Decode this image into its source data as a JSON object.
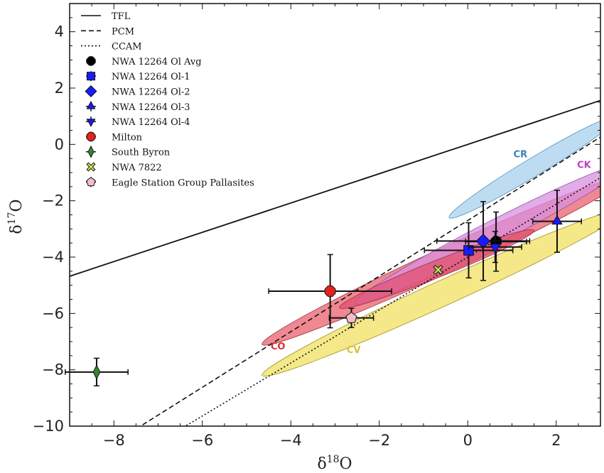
{
  "chart_data": {
    "type": "scatter",
    "xlabel": "δ18O",
    "ylabel": "δ17O",
    "xlim": [
      -9,
      3
    ],
    "ylim": [
      -10,
      5
    ],
    "xticks": [
      -8,
      -6,
      -4,
      -2,
      0,
      2
    ],
    "yticks": [
      -10,
      -8,
      -6,
      -4,
      -2,
      0,
      2,
      4
    ],
    "legend_position": "top-left",
    "lines": [
      {
        "name": "TFL",
        "style": "solid",
        "slope": 0.52,
        "intercept": 0,
        "x_range": [
          -9,
          3
        ]
      },
      {
        "name": "PCM",
        "style": "dashed",
        "slope": 0.987,
        "intercept": -2.7,
        "x_range": [
          -7.5,
          3
        ]
      },
      {
        "name": "CCAM",
        "style": "dotted",
        "slope": 0.94,
        "intercept": -4.0,
        "x_range": [
          -6.5,
          3
        ]
      }
    ],
    "series": [
      {
        "name": "NWA 12264 Ol Avg",
        "marker": "octagon",
        "color": "#000000",
        "x": 0.64,
        "y": -3.45,
        "xerr": 0.69,
        "yerr": 1.05
      },
      {
        "name": "NWA 12264 Ol-1",
        "marker": "square",
        "color": "#1a1aff",
        "x": 0.02,
        "y": -3.76,
        "xerr": 1.0,
        "yerr": 0.98
      },
      {
        "name": "NWA 12264 Ol-2",
        "marker": "diamond",
        "color": "#1a1aff",
        "x": 0.35,
        "y": -3.43,
        "xerr": 1.05,
        "yerr": 1.4
      },
      {
        "name": "NWA 12264 Ol-3",
        "marker": "triangle-up",
        "color": "#1a1aff",
        "x": 2.02,
        "y": -2.73,
        "xerr": 0.55,
        "yerr": 1.1
      },
      {
        "name": "NWA 12264 Ol-4",
        "marker": "triangle-down",
        "color": "#1a1aff",
        "x": 0.62,
        "y": -3.64,
        "xerr": 0.6,
        "yerr": 0.55
      },
      {
        "name": "Milton",
        "marker": "octagon",
        "color": "#e8201a",
        "x": -3.11,
        "y": -5.21,
        "xerr": 1.39,
        "yerr": 1.3
      },
      {
        "name": "South Byron",
        "marker": "thin-diamond",
        "color": "#2e8b2e",
        "x": -8.39,
        "y": -8.08,
        "xerr": 0.71,
        "yerr": 0.49
      },
      {
        "name": "NWA 7822",
        "marker": "x-filled",
        "color": "#c8e050",
        "x": -0.67,
        "y": -4.45,
        "xerr": 0,
        "yerr": 0
      },
      {
        "name": "Eagle Station Group Pallasites",
        "marker": "pentagon",
        "color": "#f4bcc8",
        "x": -2.63,
        "y": -6.16,
        "xerr": 0.5,
        "yerr": 0.34
      }
    ],
    "regions": [
      {
        "label": "CV",
        "from": [
          -4.65,
          -8.2
        ],
        "to": [
          3.6,
          -2.3
        ],
        "half_width": 0.45,
        "fill": "#f0e060",
        "stroke": "#a09020",
        "label_color": "#d8c030",
        "label_at": [
          -2.58,
          -7.4
        ]
      },
      {
        "label": "CO",
        "from": [
          -4.65,
          -7.1
        ],
        "to": [
          3.6,
          -1.15
        ],
        "half_width": 0.45,
        "fill": "#e8606c",
        "stroke": "#a03040",
        "label_color": "#d83030",
        "label_at": [
          -4.29,
          -7.28
        ]
      },
      {
        "label": "CK",
        "from": [
          -2.55,
          -5.65
        ],
        "to": [
          3.6,
          -0.7
        ],
        "half_width": 0.42,
        "fill": "#d890e0",
        "stroke": "#9050a0",
        "label_color": "#c040c8",
        "label_at": [
          2.63,
          -0.83
        ]
      },
      {
        "label": "",
        "from": [
          -2.9,
          -5.8
        ],
        "to": [
          1.5,
          -3.05
        ],
        "half_width": 0.3,
        "fill": "#e05070",
        "stroke": "#a03050",
        "label_color": "",
        "label_at": null
      },
      {
        "label": "CR",
        "from": [
          -0.42,
          -2.6
        ],
        "to": [
          3.4,
          1.0
        ],
        "half_width": 0.32,
        "fill": "#a8d0ec",
        "stroke": "#5090c0",
        "label_color": "#3a80b8",
        "label_at": [
          1.19,
          -0.46
        ]
      }
    ]
  }
}
